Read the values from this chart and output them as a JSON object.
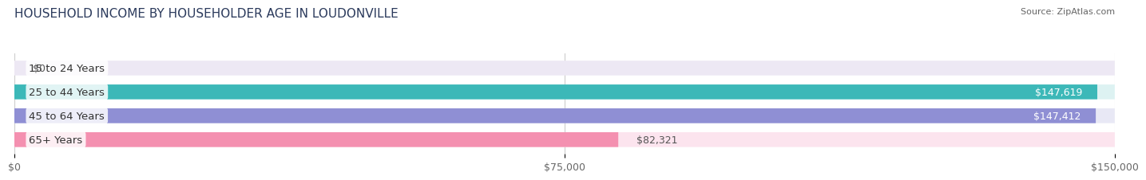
{
  "title": "HOUSEHOLD INCOME BY HOUSEHOLDER AGE IN LOUDONVILLE",
  "source": "Source: ZipAtlas.com",
  "categories": [
    "15 to 24 Years",
    "25 to 44 Years",
    "45 to 64 Years",
    "65+ Years"
  ],
  "values": [
    0,
    147619,
    147412,
    82321
  ],
  "bar_colors": [
    "#c9a8d4",
    "#3cb8b8",
    "#8f8fd4",
    "#f490b0"
  ],
  "bg_colors": [
    "#ede8f4",
    "#ddf2f2",
    "#e8e8f5",
    "#fce4ee"
  ],
  "xlim": [
    0,
    150000
  ],
  "xticks": [
    0,
    75000,
    150000
  ],
  "xtick_labels": [
    "$0",
    "$75,000",
    "$150,000"
  ],
  "value_labels": [
    "$0",
    "$147,619",
    "$147,412",
    "$82,321"
  ],
  "value_inside": [
    false,
    true,
    true,
    false
  ],
  "title_fontsize": 11,
  "label_fontsize": 9.5,
  "tick_fontsize": 9,
  "value_fontsize": 9,
  "bar_height": 0.62
}
